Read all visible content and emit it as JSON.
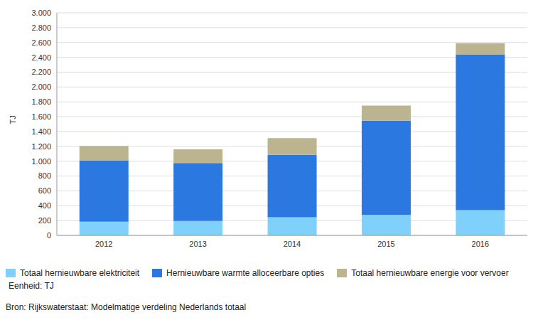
{
  "chart_data": {
    "type": "bar",
    "y_label": "TJ",
    "categories": [
      "2012",
      "2013",
      "2014",
      "2015",
      "2016"
    ],
    "series": [
      {
        "name": "Totaal hernieuwbare elektriciteit",
        "color": "#7fd0fa",
        "values": [
          185,
          195,
          245,
          275,
          340
        ]
      },
      {
        "name": "Hernieuwbare warmte alloceerbare opties",
        "color": "#2a78e0",
        "values": [
          825,
          780,
          840,
          1270,
          2100
        ]
      },
      {
        "name": "Totaal hernieuwbare energie voor vervoer",
        "color": "#bcb38f",
        "values": [
          195,
          185,
          225,
          205,
          150
        ]
      }
    ],
    "ylim": [
      0,
      3000
    ],
    "yticks": [
      0,
      200,
      400,
      600,
      800,
      {
        "value": 1000,
        "label": "1.000"
      },
      {
        "value": 1200,
        "label": "1.200"
      },
      {
        "value": 1400,
        "label": "1.400"
      },
      {
        "value": 1600,
        "label": "1.600"
      },
      {
        "value": 1800,
        "label": "1.800"
      },
      {
        "value": 2000,
        "label": "2.000"
      },
      {
        "value": 2200,
        "label": "2.200"
      },
      {
        "value": 2400,
        "label": "2.400"
      },
      {
        "value": 2600,
        "label": "2.600"
      },
      {
        "value": 2800,
        "label": "2.800"
      },
      {
        "value": 3000,
        "label": "3.000"
      }
    ],
    "stacked": true,
    "grid": true,
    "legend": "bottom",
    "annotations": [
      "Eenheid: TJ",
      "Bron: Rijkswaterstaat: Modelmatige verdeling Nederlands totaal"
    ]
  }
}
